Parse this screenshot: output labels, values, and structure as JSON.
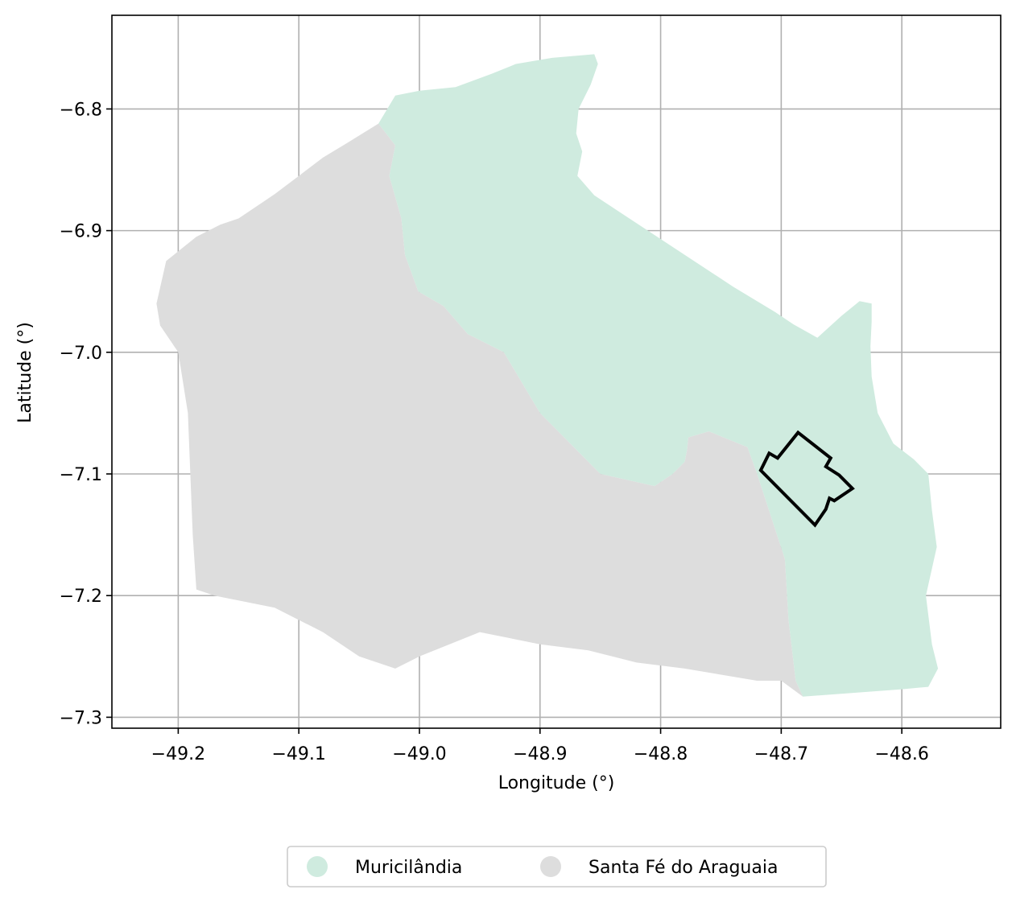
{
  "chart_data": {
    "type": "map",
    "xlabel": "Longitude (°)",
    "ylabel": "Latitude (°)",
    "xlim": [
      -49.255,
      -48.518
    ],
    "ylim": [
      -7.309,
      -6.723
    ],
    "xticks": [
      {
        "value": -49.2,
        "label": "−49.2"
      },
      {
        "value": -49.1,
        "label": "−49.1"
      },
      {
        "value": -49.0,
        "label": "−49.0"
      },
      {
        "value": -48.9,
        "label": "−48.9"
      },
      {
        "value": -48.8,
        "label": "−48.8"
      },
      {
        "value": -48.7,
        "label": "−48.7"
      },
      {
        "value": -48.6,
        "label": "−48.6"
      }
    ],
    "yticks": [
      {
        "value": -6.8,
        "label": "−6.8"
      },
      {
        "value": -6.9,
        "label": "−6.9"
      },
      {
        "value": -7.0,
        "label": "−7.0"
      },
      {
        "value": -7.1,
        "label": "−7.1"
      },
      {
        "value": -7.2,
        "label": "−7.2"
      },
      {
        "value": -7.3,
        "label": "−7.3"
      }
    ],
    "grid": true,
    "legend_position": "bottom-center",
    "series": [
      {
        "name": "Muricilândia",
        "color": "#cfebdf",
        "coords": [
          [
            -49.034,
            -6.812
          ],
          [
            -49.02,
            -6.789
          ],
          [
            -49.0,
            -6.785
          ],
          [
            -48.97,
            -6.782
          ],
          [
            -48.94,
            -6.771
          ],
          [
            -48.92,
            -6.763
          ],
          [
            -48.89,
            -6.758
          ],
          [
            -48.855,
            -6.755
          ],
          [
            -48.852,
            -6.763
          ],
          [
            -48.858,
            -6.78
          ],
          [
            -48.868,
            -6.8
          ],
          [
            -48.87,
            -6.82
          ],
          [
            -48.865,
            -6.835
          ],
          [
            -48.869,
            -6.855
          ],
          [
            -48.855,
            -6.871
          ],
          [
            -48.74,
            -6.946
          ],
          [
            -48.705,
            -6.967
          ],
          [
            -48.69,
            -6.977
          ],
          [
            -48.67,
            -6.988
          ],
          [
            -48.65,
            -6.97
          ],
          [
            -48.635,
            -6.958
          ],
          [
            -48.625,
            -6.96
          ],
          [
            -48.625,
            -6.975
          ],
          [
            -48.626,
            -6.995
          ],
          [
            -48.625,
            -7.02
          ],
          [
            -48.62,
            -7.05
          ],
          [
            -48.607,
            -7.075
          ],
          [
            -48.59,
            -7.088
          ],
          [
            -48.578,
            -7.1
          ],
          [
            -48.575,
            -7.13
          ],
          [
            -48.571,
            -7.16
          ],
          [
            -48.58,
            -7.2
          ],
          [
            -48.575,
            -7.24
          ],
          [
            -48.57,
            -7.26
          ],
          [
            -48.578,
            -7.275
          ],
          [
            -48.6,
            -7.277
          ],
          [
            -48.682,
            -7.283
          ],
          [
            -48.688,
            -7.27
          ],
          [
            -48.694,
            -7.22
          ],
          [
            -48.697,
            -7.17
          ],
          [
            -48.72,
            -7.1
          ],
          [
            -48.728,
            -7.078
          ],
          [
            -48.76,
            -7.065
          ],
          [
            -48.777,
            -7.07
          ],
          [
            -48.778,
            -7.08
          ],
          [
            -48.78,
            -7.09
          ],
          [
            -48.79,
            -7.1
          ],
          [
            -48.805,
            -7.11
          ],
          [
            -48.85,
            -7.1
          ],
          [
            -48.9,
            -7.05
          ],
          [
            -48.93,
            -7.0
          ],
          [
            -48.96,
            -6.985
          ],
          [
            -48.98,
            -6.962
          ],
          [
            -49.001,
            -6.95
          ],
          [
            -49.012,
            -6.92
          ],
          [
            -49.015,
            -6.89
          ],
          [
            -49.025,
            -6.855
          ],
          [
            -49.02,
            -6.83
          ],
          [
            -49.034,
            -6.812
          ]
        ]
      },
      {
        "name": "Santa Fé do Araguaia",
        "color": "#dddddd",
        "coords": [
          [
            -49.034,
            -6.812
          ],
          [
            -49.02,
            -6.83
          ],
          [
            -49.025,
            -6.855
          ],
          [
            -49.015,
            -6.89
          ],
          [
            -49.012,
            -6.92
          ],
          [
            -49.001,
            -6.95
          ],
          [
            -48.98,
            -6.962
          ],
          [
            -48.96,
            -6.985
          ],
          [
            -48.93,
            -7.0
          ],
          [
            -48.9,
            -7.05
          ],
          [
            -48.85,
            -7.1
          ],
          [
            -48.805,
            -7.11
          ],
          [
            -48.79,
            -7.1
          ],
          [
            -48.78,
            -7.09
          ],
          [
            -48.778,
            -7.08
          ],
          [
            -48.777,
            -7.07
          ],
          [
            -48.76,
            -7.065
          ],
          [
            -48.728,
            -7.078
          ],
          [
            -48.72,
            -7.1
          ],
          [
            -48.697,
            -7.17
          ],
          [
            -48.694,
            -7.22
          ],
          [
            -48.688,
            -7.27
          ],
          [
            -48.682,
            -7.283
          ],
          [
            -48.7,
            -7.27
          ],
          [
            -48.72,
            -7.27
          ],
          [
            -48.78,
            -7.26
          ],
          [
            -48.82,
            -7.255
          ],
          [
            -48.86,
            -7.245
          ],
          [
            -48.9,
            -7.24
          ],
          [
            -48.95,
            -7.23
          ],
          [
            -49.0,
            -7.25
          ],
          [
            -49.02,
            -7.26
          ],
          [
            -49.05,
            -7.25
          ],
          [
            -49.08,
            -7.23
          ],
          [
            -49.12,
            -7.21
          ],
          [
            -49.17,
            -7.2
          ],
          [
            -49.185,
            -7.195
          ],
          [
            -49.188,
            -7.15
          ],
          [
            -49.19,
            -7.1
          ],
          [
            -49.192,
            -7.05
          ],
          [
            -49.2,
            -7.0
          ],
          [
            -49.215,
            -6.978
          ],
          [
            -49.218,
            -6.96
          ],
          [
            -49.21,
            -6.925
          ],
          [
            -49.185,
            -6.905
          ],
          [
            -49.165,
            -6.895
          ],
          [
            -49.15,
            -6.89
          ],
          [
            -49.12,
            -6.87
          ],
          [
            -49.1,
            -6.855
          ],
          [
            -49.08,
            -6.84
          ],
          [
            -49.06,
            -6.828
          ],
          [
            -49.034,
            -6.812
          ]
        ]
      }
    ],
    "outline": {
      "color": "#000000",
      "coords": [
        [
          -48.686,
          -7.066
        ],
        [
          -48.659,
          -7.087
        ],
        [
          -48.663,
          -7.094
        ],
        [
          -48.652,
          -7.101
        ],
        [
          -48.641,
          -7.112
        ],
        [
          -48.656,
          -7.122
        ],
        [
          -48.66,
          -7.12
        ],
        [
          -48.663,
          -7.129
        ],
        [
          -48.672,
          -7.142
        ],
        [
          -48.717,
          -7.097
        ],
        [
          -48.71,
          -7.083
        ],
        [
          -48.703,
          -7.087
        ],
        [
          -48.686,
          -7.066
        ]
      ]
    }
  }
}
